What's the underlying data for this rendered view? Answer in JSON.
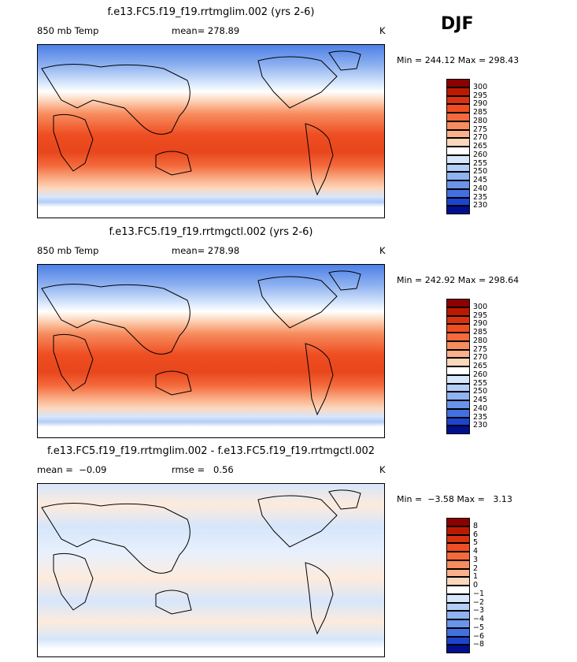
{
  "season": "DJF",
  "panels": [
    {
      "title": "f.e13.FC5.f19_f19.rrtmglim.002 (yrs 2-6)",
      "left_label": "850 mb Temp",
      "center_label": "mean= 278.89",
      "right_label": "K",
      "stats": "Min = 244.12 Max = 298.43",
      "colorbar": {
        "labels": [
          "300",
          "295",
          "290",
          "285",
          "280",
          "275",
          "270",
          "265",
          "260",
          "255",
          "250",
          "245",
          "240",
          "235",
          "230"
        ],
        "colors": [
          "#8b0000",
          "#bb1a00",
          "#d83210",
          "#ee4e22",
          "#f46a3c",
          "#f78c5e",
          "#fab08a",
          "#fdd7bc",
          "#ffffff",
          "#d6e6fb",
          "#b4cdf6",
          "#8fb2f0",
          "#6a93ea",
          "#4370e0",
          "#1e44cc",
          "#000f8c"
        ]
      }
    },
    {
      "title": "f.e13.FC5.f19_f19.rrtmgctl.002 (yrs 2-6)",
      "left_label": "850 mb Temp",
      "center_label": "mean= 278.98",
      "right_label": "K",
      "stats": "Min = 242.92 Max = 298.64",
      "colorbar": {
        "labels": [
          "300",
          "295",
          "290",
          "285",
          "280",
          "275",
          "270",
          "265",
          "260",
          "255",
          "250",
          "245",
          "240",
          "235",
          "230"
        ],
        "colors": [
          "#8b0000",
          "#bb1a00",
          "#d83210",
          "#ee4e22",
          "#f46a3c",
          "#f78c5e",
          "#fab08a",
          "#fdd7bc",
          "#ffffff",
          "#d6e6fb",
          "#b4cdf6",
          "#8fb2f0",
          "#6a93ea",
          "#4370e0",
          "#1e44cc",
          "#000f8c"
        ]
      }
    },
    {
      "title": "f.e13.FC5.f19_f19.rrtmglim.002 - f.e13.FC5.f19_f19.rrtmgctl.002",
      "left_label": "mean =  −0.09",
      "center_label": "rmse =   0.56",
      "right_label": "K",
      "stats": "Min =  −3.58 Max =   3.13",
      "colorbar": {
        "labels": [
          "8",
          "6",
          "5",
          "4",
          "3",
          "2",
          "1",
          "0",
          "−1",
          "−2",
          "−3",
          "−4",
          "−5",
          "−6",
          "−8"
        ],
        "colors": [
          "#8b0000",
          "#bb1a00",
          "#d83210",
          "#ee4e22",
          "#f46a3c",
          "#f78c5e",
          "#fab08a",
          "#fdd7bc",
          "#ffffff",
          "#d6e6fb",
          "#b4cdf6",
          "#8fb2f0",
          "#6a93ea",
          "#4370e0",
          "#1e44cc",
          "#000f8c"
        ]
      }
    }
  ]
}
